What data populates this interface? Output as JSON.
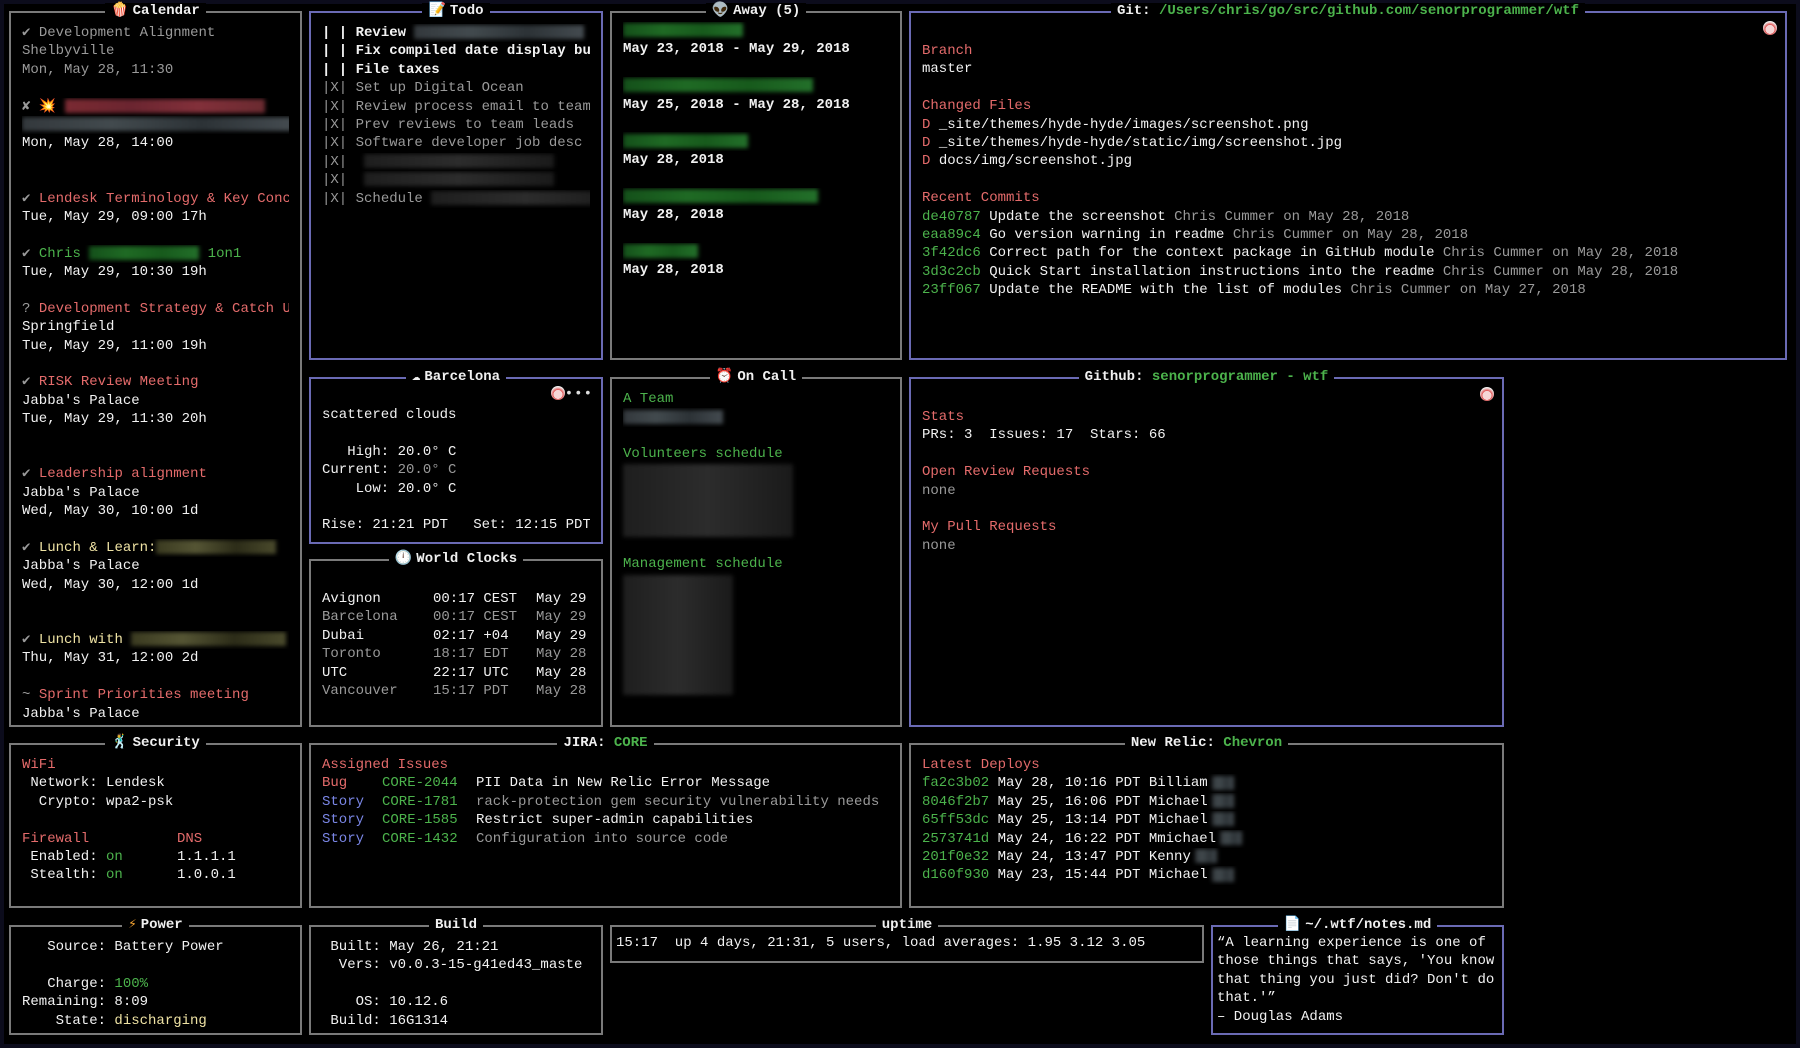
{
  "colors": {
    "accent_red": "#e46b6b",
    "accent_green": "#4cb34c",
    "border_blue": "#6a6ab4",
    "border_gray": "#7a7a7a",
    "story_blue": "#7a86e6"
  },
  "calendar": {
    "title": "Calendar",
    "icon": "popcorn-icon",
    "events": [
      {
        "mark": "✔",
        "title": "Development Alignment",
        "location": "Shelbyville",
        "time": "Mon, May 28, 11:30"
      },
      {
        "mark": "✘ 💥",
        "time": "Mon, May 28, 14:00"
      },
      {
        "mark": "✔",
        "title": "Lendesk Terminology & Key Conc",
        "time": "Tue, May 29, 09:00 17h"
      },
      {
        "mark": "✔",
        "title": "Chris",
        "title_suffix": "1on1",
        "time": "Tue, May 29, 10:30 19h"
      },
      {
        "mark": "?",
        "title": "Development Strategy & Catch U",
        "location": "Springfield",
        "time": "Tue, May 29, 11:00 19h"
      },
      {
        "mark": "✔",
        "title": "RISK Review Meeting",
        "location": "Jabba's Palace",
        "time": "Tue, May 29, 11:30 20h"
      },
      {
        "mark": "✔",
        "title": "Leadership alignment",
        "location": "Jabba's Palace",
        "time": "Wed, May 30, 10:00 1d"
      },
      {
        "mark": "✔",
        "title": "Lunch & Learn:",
        "location": "Jabba's Palace",
        "time": "Wed, May 30, 12:00 1d"
      },
      {
        "mark": "✔",
        "title": "Lunch with",
        "time": "Thu, May 31, 12:00 2d"
      },
      {
        "mark": "~",
        "title": "Sprint Priorities meeting",
        "location": "Jabba's Palace"
      }
    ]
  },
  "todo": {
    "title": "Todo",
    "icon": "memo-icon",
    "items": [
      {
        "mark": "| |",
        "text": "Review",
        "done": false
      },
      {
        "mark": "| |",
        "text": "Fix compiled date display bug",
        "done": false
      },
      {
        "mark": "| |",
        "text": "File taxes",
        "done": false
      },
      {
        "mark": "|X|",
        "text": "Set up Digital Ocean",
        "done": true
      },
      {
        "mark": "|X|",
        "text": "Review process email to team",
        "done": true
      },
      {
        "mark": "|X|",
        "text": "Prev reviews to team leads",
        "done": true
      },
      {
        "mark": "|X|",
        "text": "Software developer job desc",
        "done": true
      },
      {
        "mark": "|X|",
        "text": "",
        "done": true
      },
      {
        "mark": "|X|",
        "text": "",
        "done": true
      },
      {
        "mark": "|X|",
        "text": "Schedule",
        "done": true
      }
    ]
  },
  "away": {
    "title": "Away (5)",
    "icon": "alien-icon",
    "entries": [
      {
        "dates": "May 23, 2018 - May 29, 2018"
      },
      {
        "dates": "May 25, 2018 - May 28, 2018"
      },
      {
        "dates": "May 28, 2018"
      },
      {
        "dates": "May 28, 2018"
      },
      {
        "dates": "May 28, 2018"
      }
    ]
  },
  "git": {
    "title_label": "Git:",
    "repo_path": "/Users/chris/go/src/github.com/senorprogrammer/wtf",
    "branch_heading": "Branch",
    "branch": "master",
    "changed_heading": "Changed Files",
    "changed_files": [
      {
        "status": "D",
        "path": "_site/themes/hyde-hyde/images/screenshot.png"
      },
      {
        "status": "D",
        "path": "_site/themes/hyde-hyde/static/img/screenshot.jpg"
      },
      {
        "status": "D",
        "path": "docs/img/screenshot.jpg"
      }
    ],
    "commits_heading": "Recent Commits",
    "commits": [
      {
        "hash": "de40787",
        "message": "Update the screenshot",
        "meta": "Chris Cummer on May 28, 2018"
      },
      {
        "hash": "eaa89c4",
        "message": "Go version warning in readme",
        "meta": "Chris Cummer on May 28, 2018"
      },
      {
        "hash": "3f42dc6",
        "message": "Correct path for the context package in GitHub module",
        "meta": "Chris Cummer on May 28, 2018"
      },
      {
        "hash": "3d3c2cb",
        "message": "Quick Start installation instructions into the readme",
        "meta": "Chris Cummer on May 28, 2018"
      },
      {
        "hash": "23ff067",
        "message": "Update the README with the list of modules",
        "meta": "Chris Cummer on May 27, 2018"
      }
    ]
  },
  "weather": {
    "title": "Barcelona",
    "icon": "cloud-icon",
    "description": "scattered clouds",
    "high_label": "   High:",
    "high": "20.0° C",
    "current_label": "Current:",
    "current": "20.0° C",
    "low_label": "    Low:",
    "low": "20.0° C",
    "sun": "Rise: 21:21 PDT   Set: 12:15 PDT",
    "pager": "•••"
  },
  "clocks": {
    "title": "World Clocks",
    "icon": "clock-icon",
    "rows": [
      {
        "city": "Avignon",
        "time": "00:17 CEST",
        "date": "May 29"
      },
      {
        "city": "Barcelona",
        "time": "00:17 CEST",
        "date": "May 29"
      },
      {
        "city": "Dubai",
        "time": "02:17 +04",
        "date": "May 29"
      },
      {
        "city": "Toronto",
        "time": "18:17 EDT",
        "date": "May 28"
      },
      {
        "city": "UTC",
        "time": "22:17 UTC",
        "date": "May 28"
      },
      {
        "city": "Vancouver",
        "time": "15:17 PDT",
        "date": "May 28"
      }
    ]
  },
  "oncall": {
    "title": "On Call",
    "icon": "alarm-clock-icon",
    "schedules": [
      "A Team",
      "Volunteers schedule",
      "Management schedule"
    ]
  },
  "github": {
    "title_label": "Github:",
    "repo": "senorprogrammer - wtf",
    "stats_heading": "Stats",
    "stats": "PRs: 3  Issues: 17  Stars: 66",
    "review_heading": "Open Review Requests",
    "review_value": "none",
    "pulls_heading": "My Pull Requests",
    "pulls_value": "none"
  },
  "security": {
    "title": "Security",
    "icon": "dancer-icon",
    "wifi_heading": "WiFi",
    "network": " Network: Lendesk",
    "crypto": "  Crypto: wpa2-psk",
    "firewall_heading": "Firewall",
    "dns_heading": "DNS",
    "enabled_label": " Enabled:",
    "enabled": "on",
    "stealth_label": " Stealth:",
    "stealth": "on",
    "dns": [
      "1.1.1.1",
      "1.0.0.1"
    ]
  },
  "jira": {
    "title_label": "JIRA:",
    "project": "CORE",
    "heading": "Assigned Issues",
    "issues": [
      {
        "type": "Bug",
        "key": "CORE-2044",
        "summary": "PII Data in New Relic Error Message"
      },
      {
        "type": "Story",
        "key": "CORE-1781",
        "summary": "rack-protection gem security vulnerability needs"
      },
      {
        "type": "Story",
        "key": "CORE-1585",
        "summary": "Restrict super-admin capabilities"
      },
      {
        "type": "Story",
        "key": "CORE-1432",
        "summary": "Configuration into source code"
      }
    ]
  },
  "newrelic": {
    "title_label": "New Relic:",
    "app": "Chevron",
    "heading": "Latest Deploys",
    "deploys": [
      {
        "rev": "fa2c3b02",
        "info": "May 28, 10:16 PDT Billiam"
      },
      {
        "rev": "8046f2b7",
        "info": "May 25, 16:06 PDT Michael"
      },
      {
        "rev": "65ff53dc",
        "info": "May 25, 13:14 PDT Michael"
      },
      {
        "rev": "2573741d",
        "info": "May 24, 16:22 PDT Mmichael"
      },
      {
        "rev": "201f0e32",
        "info": "May 24, 13:47 PDT Kenny"
      },
      {
        "rev": "d160f930",
        "info": "May 23, 15:44 PDT Michael"
      }
    ]
  },
  "power": {
    "title": "Power",
    "icon": "lightning-icon",
    "source": "   Source: Battery Power",
    "charge_label": "   Charge:",
    "charge": "100%",
    "remaining": "Remaining: 8:09",
    "state_label": "    State:",
    "state": "discharging"
  },
  "build": {
    "title": "Build",
    "built": " Built: May 26, 21:21",
    "vers": "  Vers: v0.0.3-15-g41ed43_maste",
    "os": "    OS: 10.12.6",
    "build": " Build: 16G1314"
  },
  "uptime": {
    "title": "uptime",
    "text": "15:17  up 4 days, 21:31, 5 users, load averages: 1.95 3.12 3.05"
  },
  "notes": {
    "title": "~/.wtf/notes.md",
    "icon": "document-icon",
    "lines": [
      "“A learning experience is one of",
      "those things that says, 'You know",
      "that thing you just did? Don't do",
      "that.'”",
      "– Douglas Adams"
    ]
  }
}
